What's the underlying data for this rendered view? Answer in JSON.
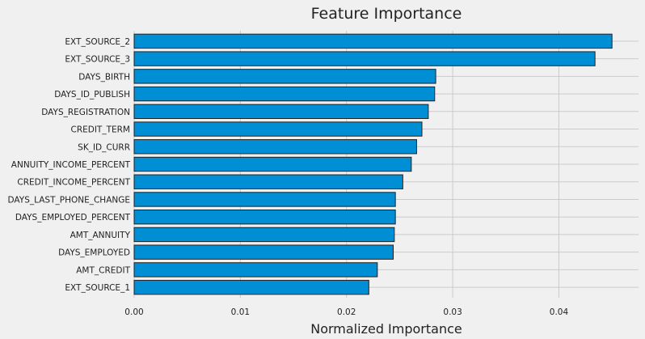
{
  "chart_data": {
    "type": "bar",
    "orientation": "horizontal",
    "title": "Feature Importance",
    "xlabel": "Normalized Importance",
    "ylabel": "",
    "xlim": [
      0.0,
      0.0475
    ],
    "xticks": [
      0.0,
      0.01,
      0.02,
      0.03,
      0.04
    ],
    "xtick_labels": [
      "0.00",
      "0.01",
      "0.02",
      "0.03",
      "0.04"
    ],
    "grid": true,
    "bar_color": "#008fd5",
    "background_color": "#f0f0f0",
    "categories": [
      "EXT_SOURCE_2",
      "EXT_SOURCE_3",
      "DAYS_BIRTH",
      "DAYS_ID_PUBLISH",
      "DAYS_REGISTRATION",
      "CREDIT_TERM",
      "SK_ID_CURR",
      "ANNUITY_INCOME_PERCENT",
      "CREDIT_INCOME_PERCENT",
      "DAYS_LAST_PHONE_CHANGE",
      "DAYS_EMPLOYED_PERCENT",
      "AMT_ANNUITY",
      "DAYS_EMPLOYED",
      "AMT_CREDIT",
      "EXT_SOURCE_1"
    ],
    "values": [
      0.045,
      0.0434,
      0.0284,
      0.0283,
      0.0277,
      0.0271,
      0.0266,
      0.0261,
      0.0253,
      0.0246,
      0.0246,
      0.0245,
      0.0244,
      0.0229,
      0.0221
    ]
  }
}
